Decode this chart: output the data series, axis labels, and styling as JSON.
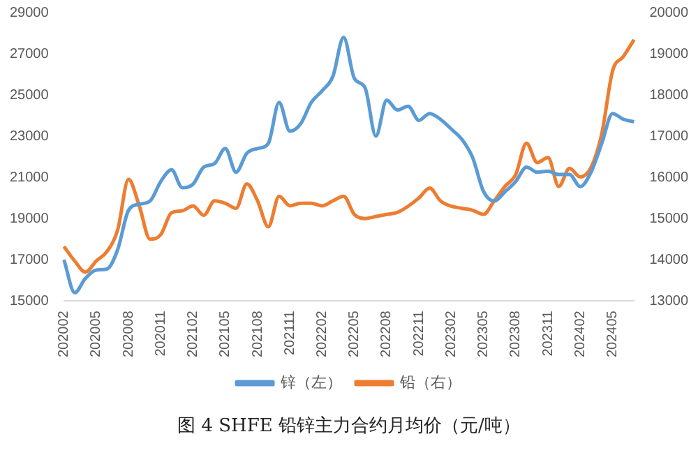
{
  "chart_data": {
    "type": "line",
    "title": "图 4   SHFE 铅锌主力合约月均价（元/吨）",
    "categories": [
      "202002",
      null,
      null,
      "202005",
      null,
      null,
      "202008",
      null,
      null,
      "202011",
      null,
      null,
      "202102",
      null,
      null,
      "202105",
      null,
      null,
      "202108",
      null,
      null,
      "202111",
      null,
      null,
      "202202",
      null,
      null,
      "202205",
      null,
      null,
      "202208",
      null,
      null,
      "202211",
      null,
      null,
      "202302",
      null,
      null,
      "202305",
      null,
      null,
      "202308",
      null,
      null,
      "202311",
      null,
      null,
      "202402",
      null,
      null,
      "202405",
      null,
      null
    ],
    "series": [
      {
        "name": "锌（左）",
        "color": "#5b9bd5",
        "values": [
          17000,
          15400,
          16100,
          16500,
          16550,
          17500,
          19400,
          19700,
          19850,
          20800,
          21370,
          20500,
          20670,
          21500,
          21670,
          22400,
          21250,
          22170,
          22400,
          22650,
          24640,
          23240,
          23600,
          24640,
          25200,
          25900,
          27800,
          25800,
          25340,
          23000,
          24750,
          24270,
          24450,
          23770,
          24100,
          23820,
          23350,
          22840,
          21950,
          20320,
          19850,
          20300,
          20800,
          21500,
          21250,
          21300,
          21140,
          21140,
          20550,
          21250,
          22650,
          24100,
          23820,
          23700
        ]
      },
      {
        "name": "铅（右）",
        "color": "#ed7d31",
        "axis": "y2",
        "values": [
          14320,
          13970,
          13700,
          13970,
          14200,
          14730,
          15950,
          15310,
          14500,
          14610,
          15140,
          15190,
          15310,
          15080,
          15430,
          15370,
          15250,
          15840,
          15430,
          14800,
          15540,
          15310,
          15370,
          15370,
          15310,
          15430,
          15540,
          15100,
          15000,
          15050,
          15100,
          15150,
          15300,
          15500,
          15740,
          15430,
          15300,
          15250,
          15200,
          15100,
          15430,
          15780,
          16070,
          16830,
          16360,
          16480,
          15780,
          16220,
          16010,
          16240,
          17060,
          18580,
          18930,
          19340
        ]
      }
    ],
    "ylim": [
      15000,
      29000
    ],
    "yticks": [
      15000,
      17000,
      19000,
      21000,
      23000,
      25000,
      27000,
      29000
    ],
    "y2lim": [
      13000,
      20000
    ],
    "y2ticks": [
      13000,
      14000,
      15000,
      16000,
      17000,
      18000,
      19000,
      20000
    ],
    "grid": false,
    "legend": "bottom",
    "marker": "none",
    "line_style": "solid"
  }
}
